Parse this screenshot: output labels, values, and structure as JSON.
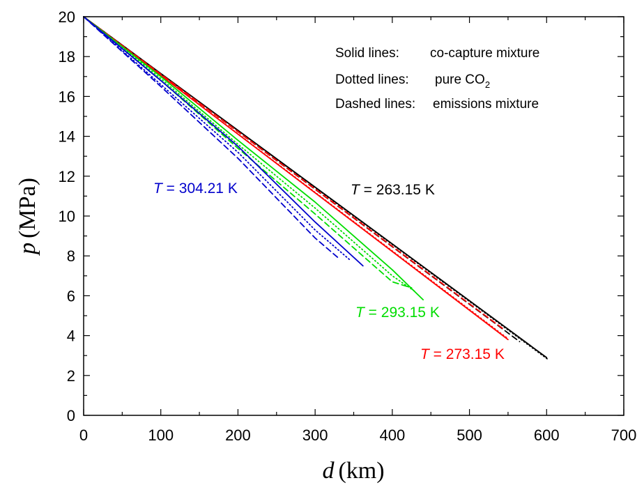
{
  "chart_data": {
    "type": "line",
    "title": "",
    "xlabel": {
      "symbol": "d",
      "unit": "(km)"
    },
    "ylabel": {
      "symbol": "p",
      "unit": "(MPa)"
    },
    "xlim": [
      0,
      700
    ],
    "ylim": [
      0,
      20
    ],
    "xticks": [
      0,
      100,
      200,
      300,
      400,
      500,
      600,
      700
    ],
    "yticks": [
      0,
      2,
      4,
      6,
      8,
      10,
      12,
      14,
      16,
      18,
      20
    ],
    "grid": false,
    "legend_notes": [
      {
        "key": "Solid lines:",
        "desc": "co-capture mixture"
      },
      {
        "key": "Dotted lines:",
        "desc": "pure CO",
        "sub": "2"
      },
      {
        "key": "Dashed lines:",
        "desc": "emissions mixture"
      }
    ],
    "series": [
      {
        "label_italic": "T",
        "label_rest": " = 263.15 K",
        "temperature_K": 263.15,
        "color": "#000000",
        "solid": {
          "x": [
            0,
            600
          ],
          "y": [
            20,
            2.9
          ]
        },
        "dotted": {
          "x": [
            0,
            602
          ],
          "y": [
            20,
            2.8
          ]
        },
        "dashed": {
          "x": [
            0,
            565
          ],
          "y": [
            20,
            3.7
          ]
        }
      },
      {
        "label_italic": "T",
        "label_rest": " = 273.15 K",
        "temperature_K": 273.15,
        "color": "#ff0000",
        "solid": {
          "x": [
            0,
            550
          ],
          "y": [
            20,
            3.8
          ]
        },
        "dotted": {
          "x": [
            0,
            548
          ],
          "y": [
            20,
            3.9
          ]
        },
        "dashed": {
          "x": [
            0,
            545
          ],
          "y": [
            20,
            4.3
          ]
        }
      },
      {
        "label_italic": "T",
        "label_rest": " = 293.15 K",
        "temperature_K": 293.15,
        "color": "#00dd00",
        "solid": {
          "x": [
            0,
            100,
            200,
            300,
            400,
            440
          ],
          "y": [
            20,
            17.0,
            13.8,
            10.7,
            7.3,
            5.8
          ]
        },
        "dotted": {
          "x": [
            0,
            100,
            200,
            300,
            400,
            430
          ],
          "y": [
            20,
            16.9,
            13.6,
            10.4,
            7.0,
            6.2
          ]
        },
        "dashed": {
          "x": [
            0,
            100,
            200,
            300,
            400,
            425
          ],
          "y": [
            20,
            16.8,
            13.4,
            10.1,
            6.7,
            6.4
          ]
        }
      },
      {
        "label_italic": "T",
        "label_rest": " = 304.21 K",
        "temperature_K": 304.21,
        "color": "#0000cc",
        "solid": {
          "x": [
            0,
            100,
            200,
            300,
            362
          ],
          "y": [
            20,
            16.8,
            13.5,
            9.7,
            7.5
          ]
        },
        "dotted": {
          "x": [
            0,
            100,
            200,
            300,
            345
          ],
          "y": [
            20,
            16.6,
            13.2,
            9.3,
            7.8
          ]
        },
        "dashed": {
          "x": [
            0,
            100,
            200,
            300,
            330
          ],
          "y": [
            20,
            16.5,
            12.9,
            8.9,
            7.9
          ]
        }
      }
    ]
  }
}
